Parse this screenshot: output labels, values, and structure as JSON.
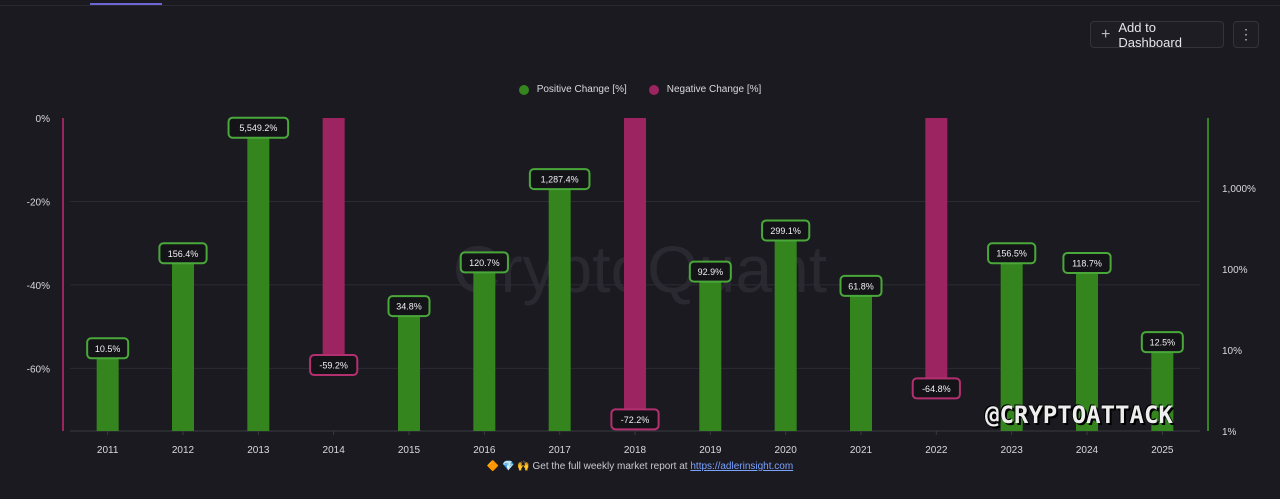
{
  "header": {
    "add_button_label": "Add to Dashboard",
    "more_button_label": "⋮"
  },
  "legend": {
    "positive_label": "Positive Change [%]",
    "negative_label": "Negative Change [%]"
  },
  "colors": {
    "positive": "#35851f",
    "negative": "#9c2460",
    "positive_label_border": "#4aa83a",
    "negative_label_border": "#b2306f",
    "grid": "#2c2b33",
    "axis_text": "#d8d8de"
  },
  "watermark_bg_text": "CryptoQuant",
  "watermark_text": "@CRYPTOATTACK",
  "footer": {
    "emoji": "🔶 💎 🙌",
    "text": "Get the full weekly market report at",
    "link": "https://adlerinsight.com"
  },
  "chart_data": {
    "type": "bar",
    "categories": [
      "2011",
      "2012",
      "2013",
      "2014",
      "2015",
      "2016",
      "2017",
      "2018",
      "2019",
      "2020",
      "2021",
      "2022",
      "2023",
      "2024",
      "2025"
    ],
    "series": [
      {
        "name": "Positive Change [%]",
        "axis": "right",
        "scale": "log",
        "values": [
          10.5,
          156.4,
          5549.2,
          null,
          34.8,
          120.7,
          1287.4,
          null,
          92.9,
          299.1,
          61.8,
          null,
          156.5,
          118.7,
          12.5
        ],
        "labels": [
          "10.5%",
          "156.4%",
          "5,549.2%",
          "",
          "34.8%",
          "120.7%",
          "1,287.4%",
          "",
          "92.9%",
          "299.1%",
          "61.8%",
          "",
          "156.5%",
          "118.7%",
          "12.5%"
        ]
      },
      {
        "name": "Negative Change [%]",
        "axis": "left",
        "scale": "linear",
        "values": [
          null,
          null,
          null,
          -59.2,
          null,
          null,
          null,
          -72.2,
          null,
          null,
          null,
          -64.8,
          null,
          null,
          null
        ],
        "labels": [
          "",
          "",
          "",
          "-59.2%",
          "",
          "",
          "",
          "-72.2%",
          "",
          "",
          "",
          "-64.8%",
          "",
          "",
          ""
        ]
      }
    ],
    "left_axis": {
      "ticks": [
        "0%",
        "-20%",
        "-40%",
        "-60%"
      ],
      "tick_values": [
        0,
        -20,
        -40,
        -60
      ],
      "range": [
        0,
        -75
      ]
    },
    "right_axis": {
      "ticks": [
        "1,000%",
        "100%",
        "10%",
        "1%"
      ],
      "tick_values": [
        1000,
        100,
        10,
        1
      ],
      "scale": "log",
      "range": [
        1,
        10000
      ]
    },
    "grid": true,
    "legend_position": "top-center"
  }
}
